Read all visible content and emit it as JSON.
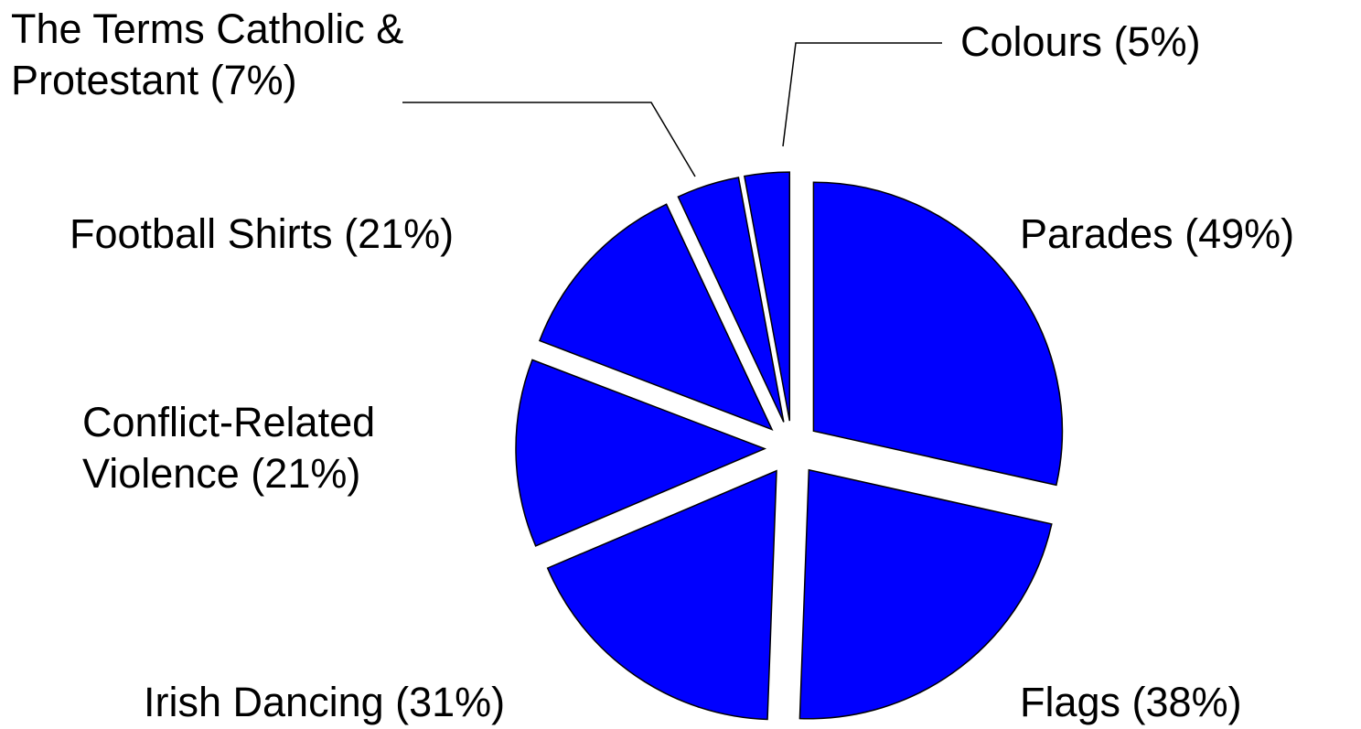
{
  "chart_data": {
    "type": "pie",
    "categories": [
      "Parades (49%)",
      "Flags (38%)",
      "Irish Dancing (31%)",
      "Conflict-Related\nViolence (21%)",
      "Football Shirts (21%)",
      "The Terms Catholic &\nProtestant (7%)",
      "Colours (5%)"
    ],
    "values": [
      49,
      38,
      31,
      21,
      21,
      7,
      5
    ],
    "color": "#0000ff"
  }
}
